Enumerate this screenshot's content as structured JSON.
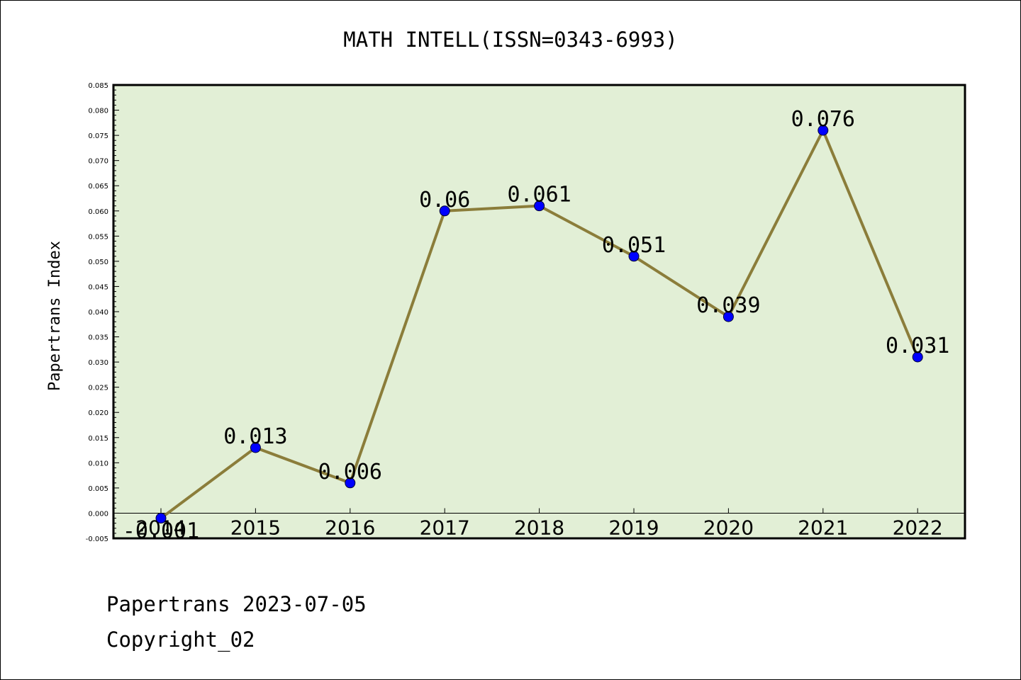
{
  "chart_data": {
    "type": "line",
    "title": "MATH INTELL(ISSN=0343-6993)",
    "xlabel": "",
    "ylabel": "Papertrans Index",
    "categories": [
      "2014",
      "2015",
      "2016",
      "2017",
      "2018",
      "2019",
      "2020",
      "2021",
      "2022"
    ],
    "values": [
      -0.001,
      0.013,
      0.006,
      0.06,
      0.061,
      0.051,
      0.039,
      0.076,
      0.031
    ],
    "data_labels": [
      "-0.001",
      "0.013",
      "0.006",
      "0.06",
      "0.061",
      "0.051",
      "0.039",
      "0.076",
      "0.031"
    ],
    "ylim": [
      -0.005,
      0.085
    ],
    "yticks": [
      "-0.005",
      "0.000",
      "0.005",
      "0.010",
      "0.015",
      "0.020",
      "0.025",
      "0.030",
      "0.035",
      "0.040",
      "0.045",
      "0.050",
      "0.055",
      "0.060",
      "0.065",
      "0.070",
      "0.075",
      "0.080",
      "0.085"
    ],
    "grid": false,
    "line_color": "#8b7d3a",
    "marker_color": "#0000ff",
    "plot_background": "#e2efd6"
  },
  "footer": {
    "line1": "Papertrans 2023-07-05",
    "line2": "Copyright_02"
  }
}
